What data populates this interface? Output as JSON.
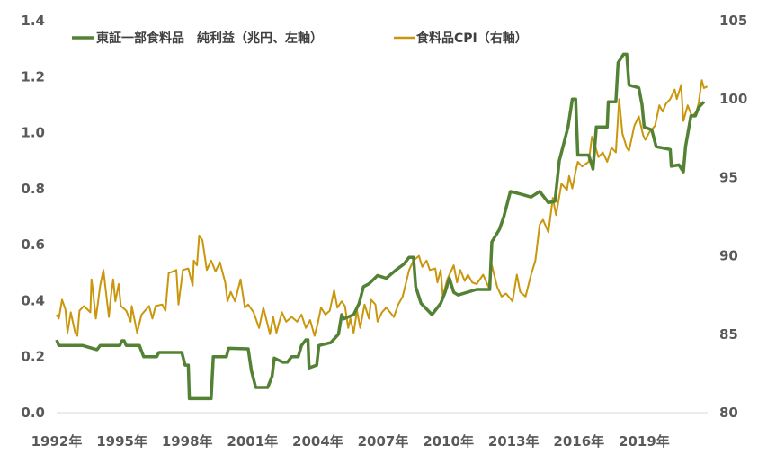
{
  "chart_data": {
    "type": "line",
    "title": "",
    "xlabel": "",
    "ylabel_left": "",
    "ylabel_right": "",
    "xlim": [
      1992,
      2022
    ],
    "ylim_left": [
      0.0,
      1.4
    ],
    "ylim_right": [
      80,
      105
    ],
    "grid": false,
    "legend_placement": "top",
    "x_tick_labels": [
      "1992年",
      "1995年",
      "1998年",
      "2001年",
      "2004年",
      "2007年",
      "2010年",
      "2013年",
      "2016年",
      "2019年"
    ],
    "x_tick_values": [
      1992,
      1995,
      1998,
      2001,
      2004,
      2007,
      2010,
      2013,
      2016,
      2019
    ],
    "y_left_tick_labels": [
      "0.0",
      "0.2",
      "0.4",
      "0.6",
      "0.8",
      "1.0",
      "1.2",
      "1.4"
    ],
    "y_left_tick_values": [
      0,
      0.2,
      0.4,
      0.6,
      0.8,
      1.0,
      1.2,
      1.4
    ],
    "y_right_tick_labels": [
      "80",
      "85",
      "90",
      "95",
      "100",
      "105"
    ],
    "y_right_tick_values": [
      80,
      85,
      90,
      95,
      100,
      105
    ],
    "series": [
      {
        "name": "東証一部食料品　純利益（兆円、左軸）",
        "axis": "left",
        "color": "#548235",
        "x": [
          1992.0,
          1992.1,
          1993.2,
          1993.85,
          1994.0,
          1994.9,
          1995.0,
          1995.1,
          1995.2,
          1995.8,
          1996.0,
          1996.6,
          1996.7,
          1997.75,
          1997.9,
          1998.05,
          1998.1,
          1999.1,
          1999.2,
          1999.8,
          1999.9,
          2000.8,
          2000.95,
          2001.15,
          2001.7,
          2001.9,
          2002.0,
          2002.4,
          2002.6,
          2002.8,
          2003.1,
          2003.25,
          2003.45,
          2003.55,
          2003.6,
          2003.95,
          2004.05,
          2004.6,
          2004.95,
          2005.1,
          2005.2,
          2005.65,
          2005.9,
          2006.1,
          2006.35,
          2006.75,
          2007.15,
          2007.6,
          2007.95,
          2008.2,
          2008.4,
          2008.5,
          2008.75,
          2009.25,
          2009.65,
          2009.85,
          2010.05,
          2010.25,
          2010.45,
          2011.3,
          2011.9,
          2012.0,
          2012.35,
          2012.55,
          2012.85,
          2013.35,
          2013.8,
          2014.2,
          2014.6,
          2014.9,
          2015.1,
          2015.3,
          2015.5,
          2015.7,
          2015.85,
          2015.95,
          2016.45,
          2016.65,
          2016.8,
          2017.3,
          2017.35,
          2017.7,
          2017.8,
          2018.05,
          2018.2,
          2018.3,
          2018.75,
          2018.9,
          2019.0,
          2019.35,
          2019.55,
          2020.2,
          2020.25,
          2020.6,
          2020.8,
          2020.9,
          2021.15,
          2021.35,
          2021.5,
          2021.75
        ],
        "values": [
          0.26,
          0.24,
          0.24,
          0.225,
          0.24,
          0.24,
          0.257,
          0.257,
          0.24,
          0.24,
          0.2,
          0.2,
          0.215,
          0.215,
          0.17,
          0.17,
          0.05,
          0.05,
          0.2,
          0.2,
          0.23,
          0.228,
          0.15,
          0.09,
          0.09,
          0.13,
          0.195,
          0.18,
          0.18,
          0.2,
          0.2,
          0.24,
          0.26,
          0.26,
          0.16,
          0.17,
          0.24,
          0.25,
          0.28,
          0.35,
          0.335,
          0.35,
          0.39,
          0.45,
          0.46,
          0.49,
          0.48,
          0.51,
          0.53,
          0.555,
          0.555,
          0.45,
          0.39,
          0.35,
          0.39,
          0.43,
          0.48,
          0.43,
          0.42,
          0.44,
          0.44,
          0.61,
          0.655,
          0.7,
          0.79,
          0.78,
          0.77,
          0.79,
          0.75,
          0.755,
          0.9,
          0.96,
          1.02,
          1.12,
          1.12,
          0.92,
          0.92,
          0.87,
          1.02,
          1.02,
          1.11,
          1.11,
          1.25,
          1.28,
          1.28,
          1.17,
          1.16,
          1.1,
          1.02,
          1.01,
          0.95,
          0.94,
          0.88,
          0.885,
          0.86,
          0.95,
          1.06,
          1.06,
          1.09,
          1.11
        ]
      },
      {
        "name": "食料品CPI（右軸）",
        "axis": "right",
        "color": "#C9960C",
        "x": [
          1992.0,
          1992.1,
          1992.25,
          1992.4,
          1992.5,
          1992.65,
          1992.85,
          1992.95,
          1993.05,
          1993.25,
          1993.55,
          1993.6,
          1993.65,
          1993.8,
          1994.0,
          1994.15,
          1994.25,
          1994.4,
          1994.5,
          1994.6,
          1994.7,
          1994.85,
          1994.95,
          1995.2,
          1995.4,
          1995.45,
          1995.7,
          1995.9,
          1996.25,
          1996.4,
          1996.55,
          1996.85,
          1997.0,
          1997.15,
          1997.5,
          1997.6,
          1997.8,
          1998.05,
          1998.25,
          1998.3,
          1998.45,
          1998.55,
          1998.7,
          1998.9,
          1999.1,
          1999.3,
          1999.5,
          1999.75,
          1999.85,
          2000.0,
          2000.2,
          2000.45,
          2000.65,
          2000.8,
          2001.05,
          2001.3,
          2001.5,
          2001.7,
          2001.8,
          2001.95,
          2002.1,
          2002.35,
          2002.55,
          2002.8,
          2003.05,
          2003.25,
          2003.45,
          2003.65,
          2003.85,
          2004.0,
          2004.15,
          2004.35,
          2004.55,
          2004.75,
          2004.9,
          2005.1,
          2005.25,
          2005.4,
          2005.5,
          2005.65,
          2005.8,
          2005.95,
          2006.15,
          2006.35,
          2006.45,
          2006.65,
          2006.75,
          2006.95,
          2007.15,
          2007.5,
          2007.7,
          2007.9,
          2008.2,
          2008.4,
          2008.65,
          2008.8,
          2009.0,
          2009.15,
          2009.4,
          2009.5,
          2009.65,
          2009.75,
          2009.95,
          2010.25,
          2010.4,
          2010.55,
          2010.75,
          2010.9,
          2011.1,
          2011.3,
          2011.6,
          2011.85,
          2012.0,
          2012.25,
          2012.45,
          2012.65,
          2012.95,
          2013.15,
          2013.3,
          2013.55,
          2013.8,
          2014.0,
          2014.2,
          2014.35,
          2014.6,
          2014.8,
          2014.95,
          2015.2,
          2015.45,
          2015.55,
          2015.7,
          2015.85,
          2015.95,
          2016.15,
          2016.45,
          2016.6,
          2016.75,
          2016.9,
          2017.1,
          2017.3,
          2017.5,
          2017.7,
          2017.85,
          2018.0,
          2018.2,
          2018.3,
          2018.55,
          2018.75,
          2018.95,
          2019.05,
          2019.25,
          2019.5,
          2019.7,
          2019.85,
          2020.0,
          2020.2,
          2020.4,
          2020.5,
          2020.7,
          2020.8,
          2021.0,
          2021.2,
          2021.4,
          2021.5,
          2021.65,
          2021.75,
          2021.9
        ],
        "values": [
          86.25,
          86.0,
          87.2,
          86.6,
          85.1,
          86.4,
          85.1,
          84.9,
          86.5,
          86.8,
          86.4,
          88.5,
          88.0,
          86.0,
          88.1,
          89.1,
          87.9,
          86.1,
          87.5,
          88.5,
          87.1,
          88.2,
          86.8,
          86.5,
          85.8,
          86.8,
          85.1,
          86.25,
          86.8,
          86.0,
          86.8,
          86.9,
          86.5,
          88.9,
          89.1,
          86.9,
          89.1,
          89.2,
          88.1,
          89.7,
          89.4,
          91.3,
          91.0,
          89.1,
          89.7,
          89.0,
          89.6,
          88.3,
          87.1,
          87.7,
          87.1,
          88.5,
          86.7,
          86.9,
          86.4,
          85.4,
          86.7,
          85.6,
          85.0,
          86.1,
          85.1,
          86.4,
          85.8,
          86.1,
          85.8,
          86.25,
          85.4,
          85.9,
          84.9,
          85.7,
          86.7,
          86.25,
          86.5,
          87.8,
          86.7,
          87.1,
          86.8,
          85.4,
          86.0,
          85.1,
          86.5,
          85.4,
          86.9,
          86.0,
          87.2,
          86.9,
          85.8,
          86.4,
          86.7,
          86.1,
          86.9,
          87.4,
          89.1,
          89.7,
          90.0,
          89.3,
          89.7,
          89.1,
          89.2,
          88.3,
          89.1,
          87.4,
          88.5,
          89.4,
          88.3,
          89.1,
          88.4,
          88.8,
          88.3,
          88.2,
          88.8,
          88.0,
          89.4,
          88.0,
          87.4,
          87.6,
          87.1,
          88.8,
          87.7,
          87.4,
          88.8,
          89.7,
          92.0,
          92.3,
          91.5,
          93.7,
          92.6,
          94.6,
          94.2,
          95.1,
          94.3,
          95.4,
          96.0,
          95.7,
          96.0,
          97.6,
          97.0,
          96.3,
          96.6,
          96.0,
          96.9,
          96.6,
          100.0,
          97.8,
          96.9,
          96.7,
          98.3,
          98.9,
          97.7,
          97.4,
          97.9,
          98.3,
          99.6,
          99.2,
          99.7,
          100.0,
          100.6,
          100.0,
          100.9,
          98.6,
          99.6,
          98.9,
          99.2,
          99.7,
          101.2,
          100.7,
          100.8
        ]
      }
    ]
  }
}
